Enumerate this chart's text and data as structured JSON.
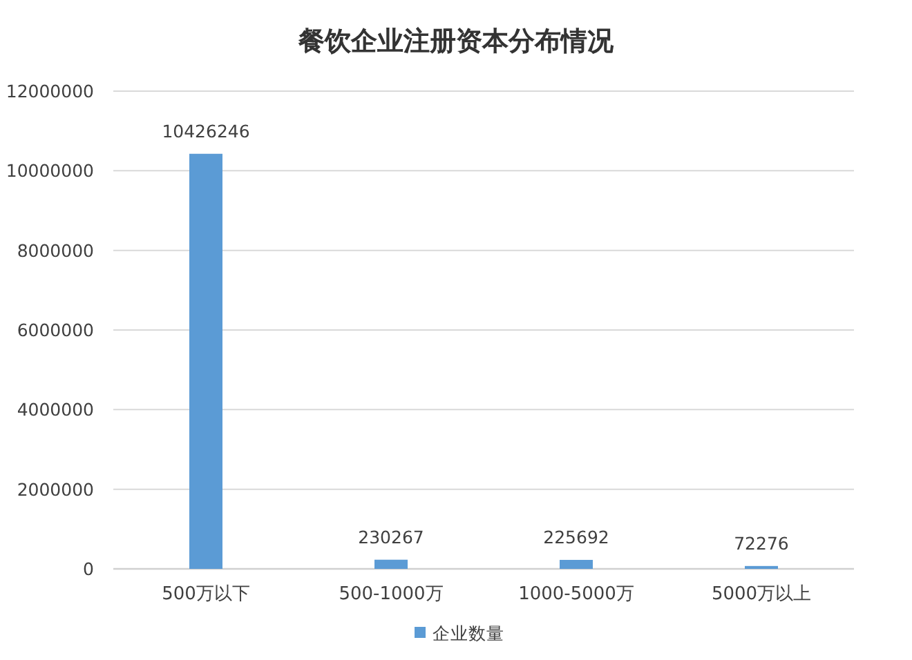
{
  "chart_data": {
    "type": "bar",
    "title": "餐饮企业注册资本分布情况",
    "categories": [
      "500万以下",
      "500-1000万",
      "1000-5000万",
      "5000万以上"
    ],
    "series": [
      {
        "name": "企业数量",
        "color": "#5b9bd5",
        "values": [
          10426246,
          230267,
          225692,
          72276
        ]
      }
    ],
    "ylim": [
      0,
      12000000
    ],
    "yticks": [
      0,
      2000000,
      4000000,
      6000000,
      8000000,
      10000000,
      12000000
    ],
    "grid": "y",
    "legend": "bottom",
    "data_labels": true
  }
}
